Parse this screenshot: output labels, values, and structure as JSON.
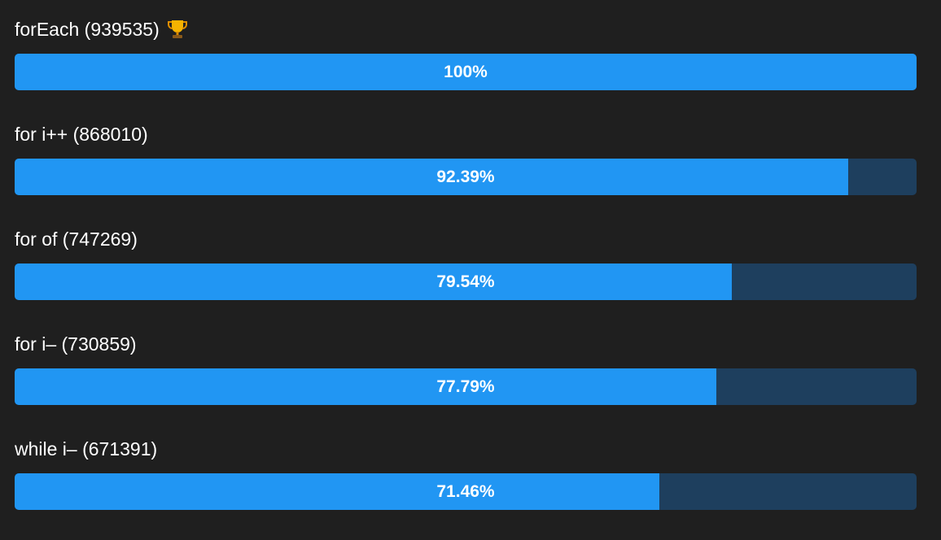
{
  "results": [
    {
      "label": "forEach (939535)",
      "percent": 100,
      "percent_label": "100%"
    },
    {
      "label": "for i++ (868010)",
      "percent": 92.39,
      "percent_label": "92.39%"
    },
    {
      "label": "for of (747269)",
      "percent": 79.54,
      "percent_label": "79.54%"
    },
    {
      "label": "for i– (730859)",
      "percent": 77.79,
      "percent_label": "77.79%"
    },
    {
      "label": "while i– (671391)",
      "percent": 71.46,
      "percent_label": "71.46%"
    }
  ]
}
